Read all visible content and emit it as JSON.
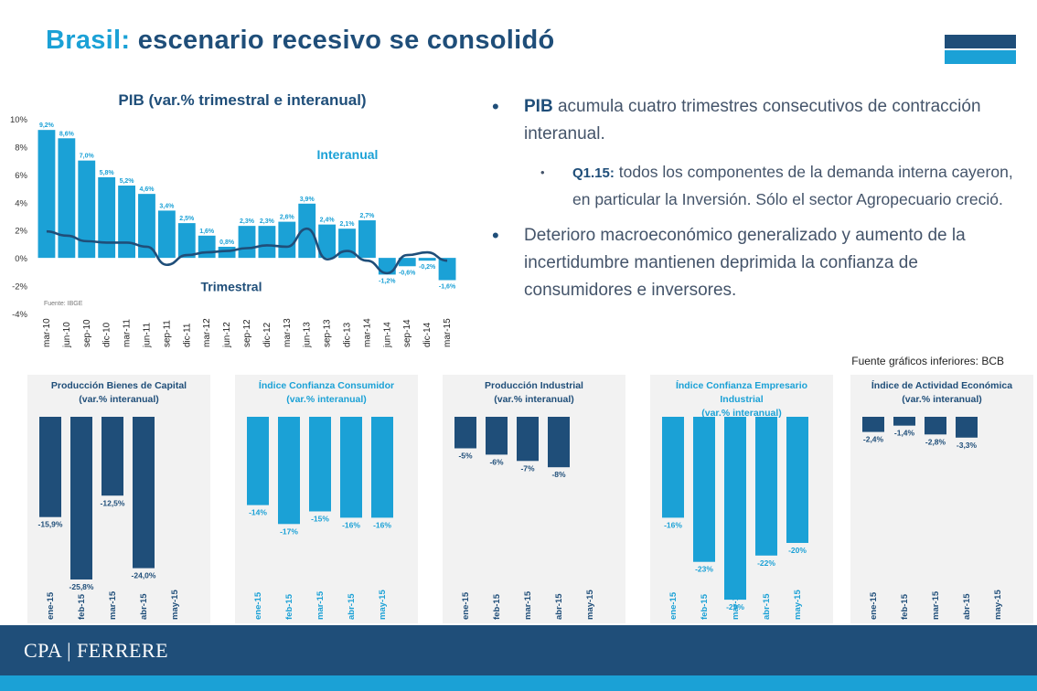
{
  "page": {
    "title_part1": "Brasil:",
    "title_part2": "escenario recesivo se consolidó",
    "colors": {
      "dark": "#1f4e79",
      "light": "#1ba1d6",
      "panel": "#f2f2f2"
    }
  },
  "bullets": {
    "b1_highlight": "PIB",
    "b1_text": " acumula cuatro trimestres consecutivos de contracción interanual.",
    "b2_highlight": "Q1.15:",
    "b2_text": " todos los componentes de la demanda interna cayeron, en particular la Inversión. Sólo el sector Agropecuario creció.",
    "b3_text": "Deterioro macroeconómico generalizado y aumento de la incertidumbre mantienen deprimida la confianza de consumidores e inversores."
  },
  "fuente_bcb": "Fuente gráficos inferiores: BCB",
  "footer": {
    "logo": "CPA | FERRERE"
  },
  "chart_data": [
    {
      "type": "bar",
      "title": "PIB  (var.% trimestral e interanual)",
      "source_note": "Fuente: IBGE",
      "categories": [
        "mar-10",
        "jun-10",
        "sep-10",
        "dic-10",
        "mar-11",
        "jun-11",
        "sep-11",
        "dic-11",
        "mar-12",
        "jun-12",
        "sep-12",
        "dic-12",
        "mar-13",
        "jun-13",
        "sep-13",
        "dic-13",
        "mar-14",
        "jun-14",
        "sep-14",
        "dic-14",
        "mar-15"
      ],
      "yticks": [
        "10%",
        "8%",
        "6%",
        "4%",
        "2%",
        "0%",
        "-2%",
        "-4%"
      ],
      "ylim": [
        -4,
        10
      ],
      "series": [
        {
          "name": "Interanual",
          "kind": "bar",
          "values": [
            9.2,
            8.6,
            7.0,
            5.8,
            5.2,
            4.6,
            3.4,
            2.5,
            1.6,
            0.8,
            2.3,
            2.3,
            2.6,
            3.9,
            2.4,
            2.1,
            2.7,
            -1.2,
            -0.6,
            -0.2,
            -1.6
          ],
          "labels": [
            "9,2%",
            "8,6%",
            "7,0%",
            "5,8%",
            "5,2%",
            "4,6%",
            "3,4%",
            "2,5%",
            "1,6%",
            "0,8%",
            "2,3%",
            "2,3%",
            "2,6%",
            "3,9%",
            "2,4%",
            "2,1%",
            "2,7%",
            "-1,2%",
            "-0,6%",
            "-0,2%",
            "-1,6%"
          ]
        },
        {
          "name": "Trimestral",
          "kind": "line",
          "values": [
            1.9,
            1.6,
            1.2,
            1.1,
            1.1,
            0.8,
            -0.5,
            0.2,
            0.4,
            0.5,
            0.7,
            0.9,
            0.8,
            2.1,
            -0.1,
            0.5,
            -0.2,
            -1.1,
            0.2,
            0.4,
            -0.2
          ]
        }
      ]
    },
    {
      "type": "bar",
      "title_lines": [
        "Producción Bienes de Capital",
        "(var.% interanual)"
      ],
      "categories": [
        "ene-15",
        "feb-15",
        "mar-15",
        "abr-15",
        "may-15"
      ],
      "values": [
        -15.9,
        -25.8,
        -12.5,
        -24.0,
        null
      ],
      "labels": [
        "-15,9%",
        "-25,8%",
        "-12,5%",
        "-24,0%",
        ""
      ],
      "color": "#1f4e79",
      "ymin": -30
    },
    {
      "type": "bar",
      "title_lines": [
        "Índice Confianza Consumidor",
        "(var.% interanual)"
      ],
      "categories": [
        "ene-15",
        "feb-15",
        "mar-15",
        "abr-15",
        "may-15"
      ],
      "values": [
        -14,
        -17,
        -15,
        -16,
        -16
      ],
      "labels": [
        "-14%",
        "-17%",
        "-15%",
        "-16%",
        "-16%"
      ],
      "color": "#1ba1d6",
      "ymin": -30
    },
    {
      "type": "bar",
      "title_lines": [
        "Producción Industrial",
        "(var.% interanual)"
      ],
      "categories": [
        "ene-15",
        "feb-15",
        "mar-15",
        "abr-15",
        "may-15"
      ],
      "values": [
        -5,
        -6,
        -7,
        -8,
        null
      ],
      "labels": [
        "-5%",
        "-6%",
        "-7%",
        "-8%",
        ""
      ],
      "color": "#1f4e79",
      "ymin": -30
    },
    {
      "type": "bar",
      "title_lines": [
        "Índice Confianza Empresario",
        "Industrial",
        "(var.% interanual)"
      ],
      "categories": [
        "ene-15",
        "feb-15",
        "mar-15",
        "abr-15",
        "may-15"
      ],
      "values": [
        -16,
        -23,
        -29,
        -22,
        -20
      ],
      "labels": [
        "-16%",
        "-23%",
        "-29%",
        "-22%",
        "-20%"
      ],
      "color": "#1ba1d6",
      "ymin": -30
    },
    {
      "type": "bar",
      "title_lines": [
        "Índice de Actividad Económica",
        "(var.% interanual)"
      ],
      "categories": [
        "ene-15",
        "feb-15",
        "mar-15",
        "abr-15",
        "may-15"
      ],
      "values": [
        -2.4,
        -1.4,
        -2.8,
        -3.3,
        null
      ],
      "labels": [
        "-2,4%",
        "-1,4%",
        "-2,8%",
        "-3,3%",
        ""
      ],
      "color": "#1f4e79",
      "ymin": -30
    }
  ]
}
